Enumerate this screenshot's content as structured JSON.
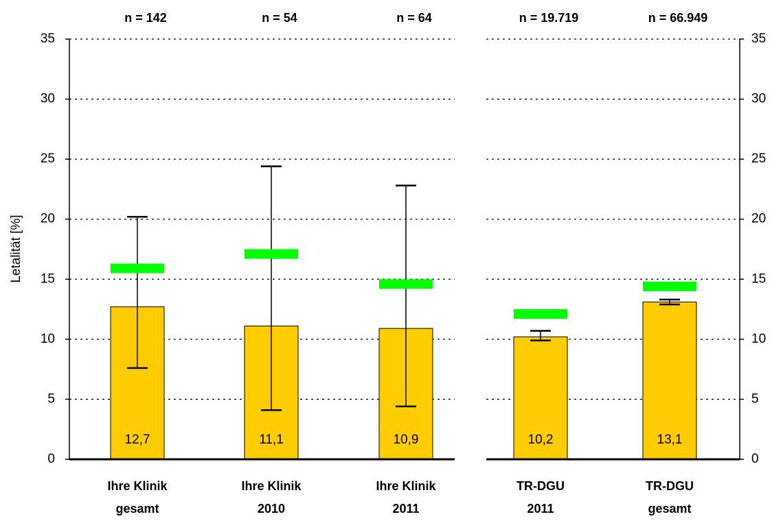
{
  "chart_data": {
    "type": "bar",
    "y_label": "Letalität [%]",
    "annotations": [
      "n = 142",
      "n = 54",
      "n = 64",
      "n = 19.719",
      "n = 66.949"
    ],
    "categories": [
      [
        "Ihre Klinik",
        "gesamt"
      ],
      [
        "Ihre Klinik",
        "2010"
      ],
      [
        "Ihre Klinik",
        "2011"
      ],
      [
        "TR-DGU",
        "2011"
      ],
      [
        "TR-DGU",
        "gesamt"
      ]
    ],
    "values": [
      12.7,
      11.1,
      10.9,
      10.2,
      13.1
    ],
    "value_labels": [
      "12,7",
      "11,1",
      "10,9",
      "10,2",
      "13,1"
    ],
    "error_low": [
      7.6,
      4.1,
      4.4,
      9.9,
      12.9
    ],
    "error_high": [
      20.2,
      24.4,
      22.8,
      10.7,
      13.3
    ],
    "expected": [
      15.9,
      17.1,
      14.6,
      12.1,
      14.4
    ],
    "color": "#ffcc00",
    "expected_color": "#00ff00",
    "ylim": [
      0,
      35
    ],
    "yticks": [
      0,
      5,
      10,
      15,
      20,
      25,
      30,
      35
    ],
    "grid": true
  }
}
